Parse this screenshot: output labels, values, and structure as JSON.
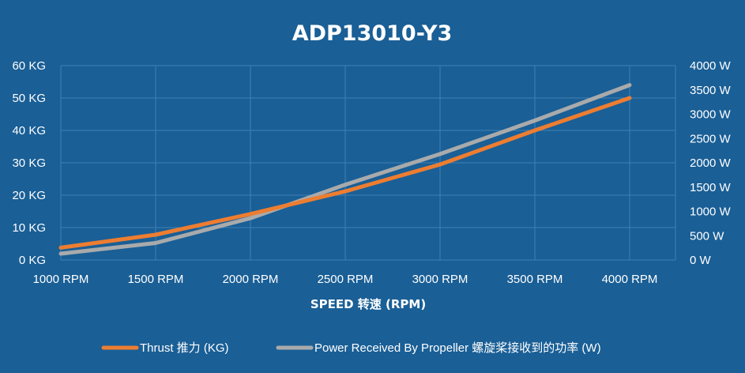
{
  "chart_data": {
    "type": "line",
    "title": "ADP13010-Y3",
    "xlabel": "SPEED 转速 (RPM)",
    "categories": [
      "1000 RPM",
      "1500 RPM",
      "2000 RPM",
      "2500 RPM",
      "3000 RPM",
      "3500 RPM",
      "4000 RPM"
    ],
    "y_left": {
      "ylim": [
        0,
        60
      ],
      "ticks": [
        "0 KG",
        "10 KG",
        "20 KG",
        "30 KG",
        "40 KG",
        "50 KG",
        "60 KG"
      ]
    },
    "y_right": {
      "ylim": [
        0,
        4000
      ],
      "ticks": [
        "0 W",
        "500 W",
        "1000 W",
        "1500 W",
        "2000 W",
        "2500 W",
        "3000 W",
        "3500 W",
        "4000 W"
      ]
    },
    "series": [
      {
        "name": "Thrust 推力 (KG)",
        "axis": "left",
        "color": "#ed7d31",
        "values": [
          3.8,
          7.8,
          14.2,
          21.2,
          29.5,
          40.0,
          50.0
        ]
      },
      {
        "name": "Power Received By Propeller 螺旋桨接收到的功率 (W)",
        "axis": "right",
        "color": "#a9aaab",
        "values": [
          130,
          350,
          860,
          1550,
          2180,
          2870,
          3600
        ]
      }
    ],
    "grid": true,
    "legend_position": "bottom"
  }
}
